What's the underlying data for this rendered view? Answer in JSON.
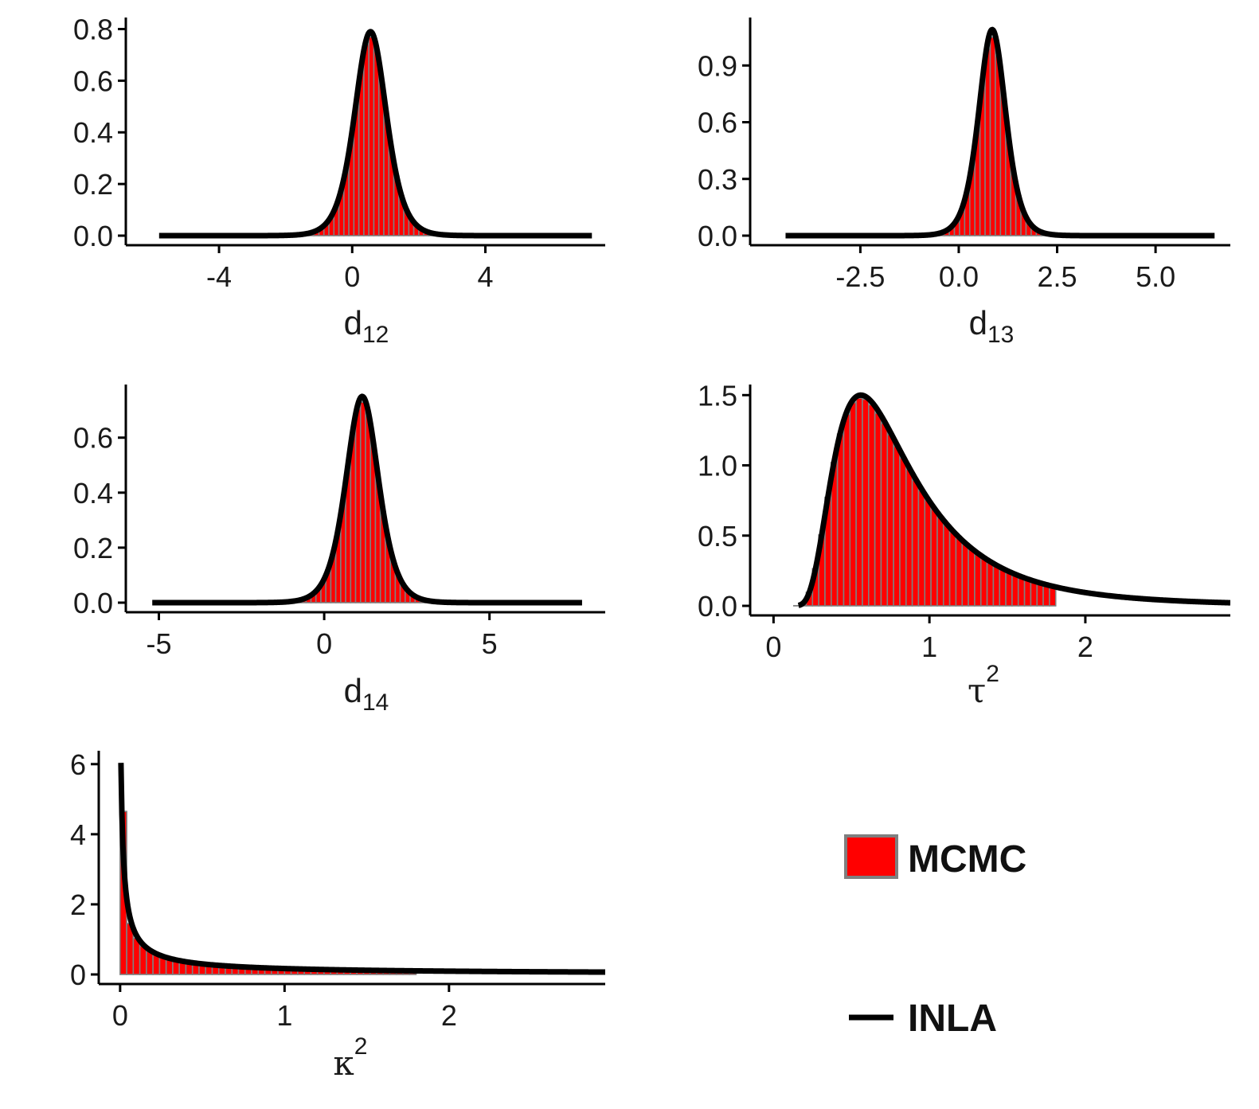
{
  "colors": {
    "bar_fill": "#ff0000",
    "bar_stroke": "#7f7f7f",
    "curve": "#000000",
    "axis": "#000000"
  },
  "legend": {
    "placement": "bottom-right",
    "items": [
      {
        "label": "MCMC",
        "kind": "histogram-box"
      },
      {
        "label": "INLA",
        "kind": "line"
      }
    ]
  },
  "chart_data": [
    {
      "type": "bar",
      "xlabel": {
        "main": "d",
        "sub": "12",
        "sup": ""
      },
      "xlim": [
        -6.8,
        7.6
      ],
      "ylim": [
        0,
        0.82
      ],
      "xticks": [
        {
          "v": -4,
          "t": "-4"
        },
        {
          "v": 0,
          "t": "0"
        },
        {
          "v": 4,
          "t": "4"
        }
      ],
      "yticks": [
        {
          "v": 0,
          "t": "0.0"
        },
        {
          "v": 0.2,
          "t": "0.2"
        },
        {
          "v": 0.4,
          "t": "0.4"
        },
        {
          "v": 0.6,
          "t": "0.6"
        },
        {
          "v": 0.8,
          "t": "0.8"
        }
      ],
      "histogram": {
        "range": [
          -5.8,
          7.2
        ],
        "bin_width": 0.15,
        "family": "logistic",
        "mode": 0.55,
        "scale": 0.32,
        "peak": 0.77
      },
      "inla": {
        "range": [
          -5.8,
          7.2
        ],
        "family": "logistic",
        "mode": 0.55,
        "scale": 0.32,
        "peak": 0.79
      }
    },
    {
      "type": "bar",
      "xlabel": {
        "main": "d",
        "sub": "13",
        "sup": ""
      },
      "xlim": [
        -5.3,
        6.9
      ],
      "ylim": [
        0,
        1.12
      ],
      "xticks": [
        {
          "v": -2.5,
          "t": "-2.5"
        },
        {
          "v": 0,
          "t": "0.0"
        },
        {
          "v": 2.5,
          "t": "2.5"
        },
        {
          "v": 5,
          "t": "5.0"
        }
      ],
      "yticks": [
        {
          "v": 0,
          "t": "0.0"
        },
        {
          "v": 0.3,
          "t": "0.3"
        },
        {
          "v": 0.6,
          "t": "0.6"
        },
        {
          "v": 0.9,
          "t": "0.9"
        }
      ],
      "histogram": {
        "range": [
          -4.4,
          6.5
        ],
        "bin_width": 0.13,
        "family": "logistic",
        "mode": 0.85,
        "scale": 0.23,
        "peak": 1.05
      },
      "inla": {
        "range": [
          -4.4,
          6.5
        ],
        "family": "logistic",
        "mode": 0.85,
        "scale": 0.23,
        "peak": 1.09
      }
    },
    {
      "type": "bar",
      "xlabel": {
        "main": "d",
        "sub": "14",
        "sup": ""
      },
      "xlim": [
        -6.0,
        8.5
      ],
      "ylim": [
        0,
        0.77
      ],
      "xticks": [
        {
          "v": -5,
          "t": "-5"
        },
        {
          "v": 0,
          "t": "0"
        },
        {
          "v": 5,
          "t": "5"
        }
      ],
      "yticks": [
        {
          "v": 0,
          "t": "0.0"
        },
        {
          "v": 0.2,
          "t": "0.2"
        },
        {
          "v": 0.4,
          "t": "0.4"
        },
        {
          "v": 0.6,
          "t": "0.6"
        }
      ],
      "histogram": {
        "range": [
          -5.2,
          7.8
        ],
        "bin_width": 0.15,
        "family": "logistic",
        "mode": 1.15,
        "scale": 0.33,
        "peak": 0.73
      },
      "inla": {
        "range": [
          -5.2,
          7.8
        ],
        "family": "logistic",
        "mode": 1.15,
        "scale": 0.33,
        "peak": 0.75
      }
    },
    {
      "type": "bar",
      "xlabel": {
        "main": "τ",
        "sub": "",
        "sup": "2"
      },
      "xlim": [
        -0.15,
        2.93
      ],
      "ylim": [
        0,
        1.53
      ],
      "xticks": [
        {
          "v": 0,
          "t": "0"
        },
        {
          "v": 1,
          "t": "1"
        },
        {
          "v": 2,
          "t": "2"
        }
      ],
      "yticks": [
        {
          "v": 0,
          "t": "0.0"
        },
        {
          "v": 0.5,
          "t": "0.5"
        },
        {
          "v": 1.0,
          "t": "1.0"
        },
        {
          "v": 1.5,
          "t": "1.5"
        }
      ],
      "histogram": {
        "range": [
          0.13,
          1.8
        ],
        "bin_width": 0.04,
        "family": "invgamma",
        "shape": 4.0,
        "scale": 2.8,
        "peak": 1.48
      },
      "inla": {
        "range": [
          0.16,
          2.93
        ],
        "family": "invgamma",
        "shape": 4.0,
        "scale": 2.8,
        "peak": 1.5
      }
    },
    {
      "type": "bar",
      "xlabel": {
        "main": "κ",
        "sub": "",
        "sup": "2"
      },
      "xlim": [
        -0.13,
        2.95
      ],
      "ylim": [
        0,
        6.2
      ],
      "xticks": [
        {
          "v": 0,
          "t": "0"
        },
        {
          "v": 1,
          "t": "1"
        },
        {
          "v": 2,
          "t": "2"
        }
      ],
      "yticks": [
        {
          "v": 0,
          "t": "0"
        },
        {
          "v": 2,
          "t": "2"
        },
        {
          "v": 4,
          "t": "4"
        },
        {
          "v": 6,
          "t": "6"
        }
      ],
      "histogram": {
        "range": [
          0,
          1.8
        ],
        "bin_width": 0.04,
        "family": "power",
        "a": 0.17,
        "exponent": 0.85,
        "offset": 0.02,
        "first": 4.65
      },
      "inla": {
        "range": [
          0.005,
          2.95
        ],
        "family": "power",
        "a": 0.17,
        "exponent": 0.85,
        "offset": 0.01,
        "cap": 6.3
      }
    }
  ]
}
